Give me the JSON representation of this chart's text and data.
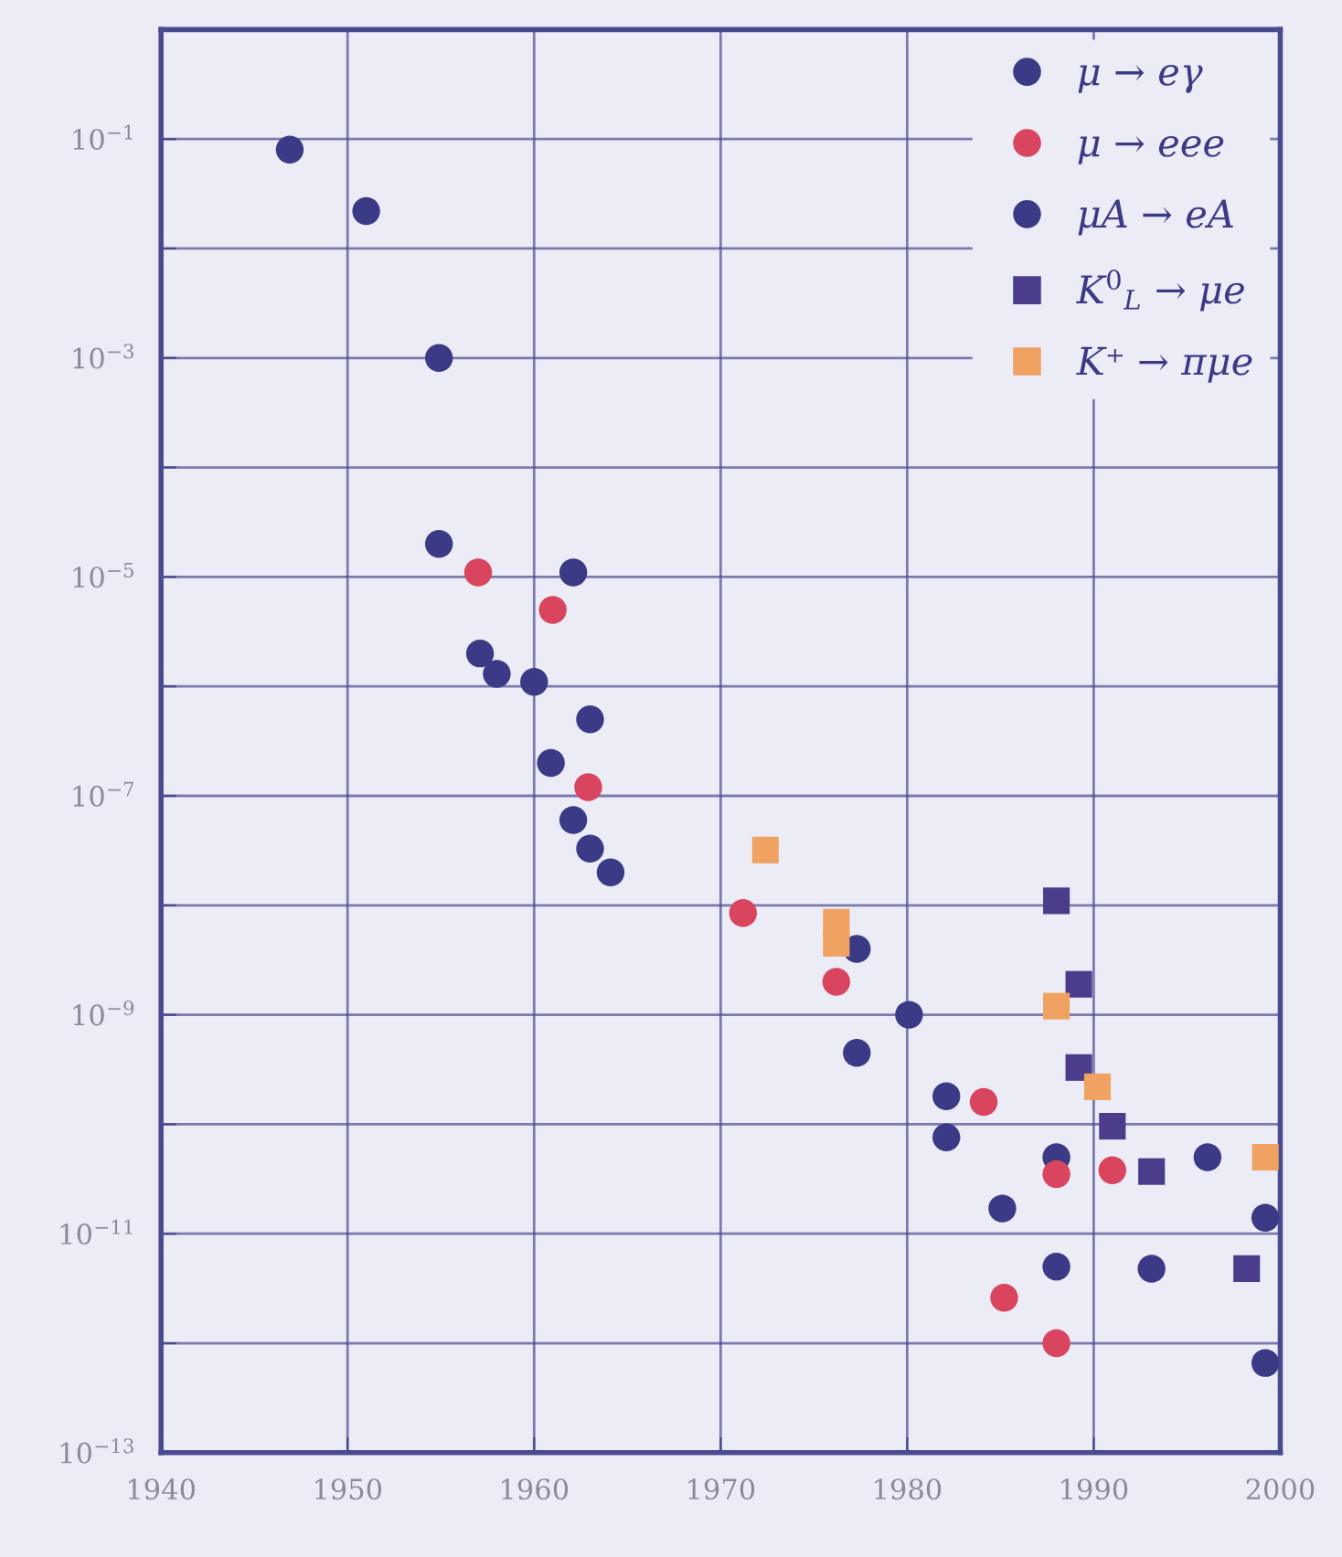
{
  "chart_data": {
    "type": "scatter",
    "series": [
      {
        "name": "μ → eγ",
        "color": "#3b3a86",
        "marker": "circle",
        "x": [
          1946.9,
          1951.0,
          1954.9,
          1954.9,
          1957.1,
          1958.0,
          1960.0,
          1962.1,
          1963.0,
          1977.3,
          1980.1,
          1982.1,
          1988.0,
          1996.1,
          1999.2
        ],
        "values": [
          0.08,
          0.022,
          0.001,
          2e-05,
          2e-06,
          1.3e-06,
          1.1e-06,
          1.1e-05,
          5e-07,
          4e-09,
          1e-09,
          1.8e-10,
          5e-11,
          5e-11,
          1.4e-11
        ]
      },
      {
        "name": "μ → eee",
        "color": "#d9445e",
        "marker": "circle",
        "x": [
          1957.0,
          1961.0,
          1962.5,
          1962.9,
          1971.2,
          1976.2,
          1984.1,
          1988.0,
          1991.0,
          1985.2,
          1988.0
        ],
        "values": [
          1.1e-05,
          5e-06,
          null,
          1.2e-07,
          8.5e-09,
          2e-09,
          1.6e-10,
          3.5e-11,
          3.8e-11,
          2.6e-12,
          1e-12
        ]
      },
      {
        "name": "μA → eA",
        "color": "#3b3a86",
        "marker": "circle",
        "x": [
          1960.9,
          1962.1,
          1963.0,
          1964.1,
          1977.3,
          1982.1,
          1985.1,
          1988.0,
          1993.1,
          1999.2
        ],
        "values": [
          2e-07,
          6e-08,
          3.3e-08,
          2e-08,
          4.5e-10,
          7.6e-11,
          1.7e-11,
          5e-12,
          4.8e-12,
          6.6e-13
        ]
      },
      {
        "name": "K$^{0}$$_{L}$ → μe",
        "color": "#4b3c8c",
        "marker": "square",
        "x": [
          1988.0,
          1989.2,
          1989.2,
          1991.0,
          1993.1,
          1998.2
        ],
        "values": [
          1.1e-08,
          1.9e-09,
          3.3e-10,
          9.6e-11,
          3.7e-11,
          4.8e-12
        ]
      },
      {
        "name": "K⁺ → πμe",
        "color": "#f0a262",
        "marker": "square",
        "x": [
          1972.4,
          1976.2,
          1976.2,
          1988.0,
          1990.2,
          1999.2
        ],
        "values": [
          3.2e-08,
          7e-09,
          4.5e-09,
          1.2e-09,
          2.2e-10,
          5e-11
        ]
      }
    ],
    "log": "y",
    "xlim": [
      1940,
      2000
    ],
    "xticks": [
      1940,
      1950,
      1960,
      1970,
      1980,
      1990,
      2000
    ],
    "ylim": [
      1e-13,
      1
    ],
    "yticks": [
      {
        "value": 0.1,
        "label": "10$^{−1}$"
      },
      {
        "value": 0.01,
        "label": null
      },
      {
        "value": 0.001,
        "label": "10$^{−3}$"
      },
      {
        "value": 0.0001,
        "label": null
      },
      {
        "value": 1e-05,
        "label": "10$^{−5}$"
      },
      {
        "value": 1e-06,
        "label": null
      },
      {
        "value": 1e-07,
        "label": "10$^{−7}$"
      },
      {
        "value": 1e-08,
        "label": null
      },
      {
        "value": 1e-09,
        "label": "10$^{−9}$"
      },
      {
        "value": 1e-10,
        "label": null
      },
      {
        "value": 1e-11,
        "label": "10$^{−11}$"
      },
      {
        "value": 1e-12,
        "label": null
      },
      {
        "value": 1e-13,
        "label": "10$^{−13}$"
      }
    ],
    "grid": true,
    "legend": "top right"
  }
}
